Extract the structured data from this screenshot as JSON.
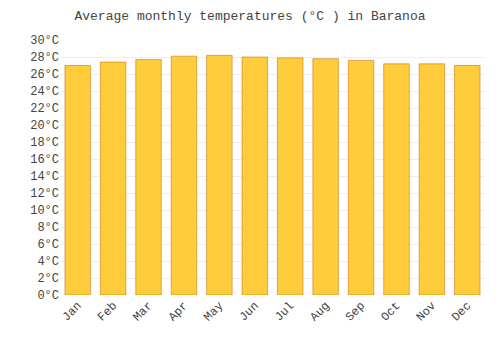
{
  "chart_data": {
    "type": "bar",
    "title": "Average monthly temperatures (°C ) in Baranoa",
    "categories": [
      "Jan",
      "Feb",
      "Mar",
      "Apr",
      "May",
      "Jun",
      "Jul",
      "Aug",
      "Sep",
      "Oct",
      "Nov",
      "Dec"
    ],
    "values": [
      27.0,
      27.4,
      27.7,
      28.1,
      28.2,
      28.0,
      27.9,
      27.8,
      27.6,
      27.2,
      27.2,
      27.0
    ],
    "color": "#FFCD3C",
    "ylim": [
      0,
      30
    ],
    "yticks": [
      {
        "value": 0,
        "label": "0°C"
      },
      {
        "value": 2,
        "label": "2°C"
      },
      {
        "value": 4,
        "label": "4°C"
      },
      {
        "value": 6,
        "label": "6°C"
      },
      {
        "value": 8,
        "label": "8°C"
      },
      {
        "value": 10,
        "label": "10°C"
      },
      {
        "value": 12,
        "label": "12°C"
      },
      {
        "value": 14,
        "label": "14°C"
      },
      {
        "value": 16,
        "label": "16°C"
      },
      {
        "value": 18,
        "label": "18°C"
      },
      {
        "value": 20,
        "label": "20°C"
      },
      {
        "value": 22,
        "label": "22°C"
      },
      {
        "value": 24,
        "label": "24°C"
      },
      {
        "value": 26,
        "label": "26°C"
      },
      {
        "value": 28,
        "label": "28°C"
      },
      {
        "value": 30,
        "label": "30°C"
      }
    ],
    "grid": true
  }
}
